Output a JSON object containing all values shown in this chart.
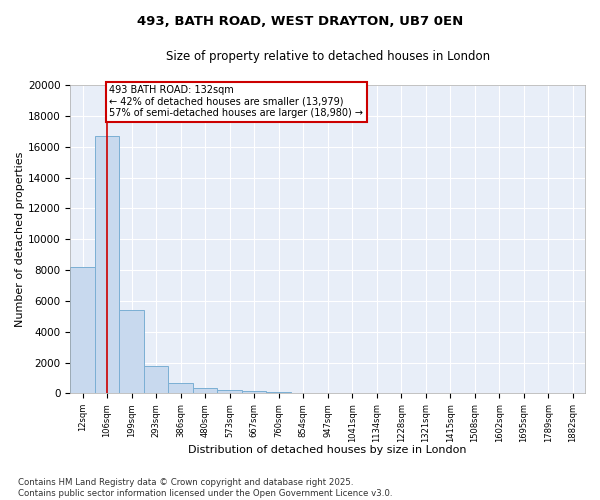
{
  "title": "493, BATH ROAD, WEST DRAYTON, UB7 0EN",
  "subtitle": "Size of property relative to detached houses in London",
  "xlabel": "Distribution of detached houses by size in London",
  "ylabel": "Number of detached properties",
  "bar_color": "#c8d9ee",
  "bar_edge_color": "#7bafd4",
  "background_color": "#e8eef8",
  "grid_color": "#ffffff",
  "categories": [
    "12sqm",
    "106sqm",
    "199sqm",
    "293sqm",
    "386sqm",
    "480sqm",
    "573sqm",
    "667sqm",
    "760sqm",
    "854sqm",
    "947sqm",
    "1041sqm",
    "1134sqm",
    "1228sqm",
    "1321sqm",
    "1415sqm",
    "1508sqm",
    "1602sqm",
    "1695sqm",
    "1789sqm",
    "1882sqm"
  ],
  "values": [
    8200,
    16700,
    5400,
    1800,
    650,
    320,
    200,
    150,
    100,
    0,
    0,
    0,
    0,
    0,
    0,
    0,
    0,
    0,
    0,
    0,
    0
  ],
  "ylim": [
    0,
    20000
  ],
  "yticks": [
    0,
    2000,
    4000,
    6000,
    8000,
    10000,
    12000,
    14000,
    16000,
    18000,
    20000
  ],
  "vline_x": 1,
  "vline_color": "#cc0000",
  "annotation_text": "493 BATH ROAD: 132sqm\n← 42% of detached houses are smaller (13,979)\n57% of semi-detached houses are larger (18,980) →",
  "footnote": "Contains HM Land Registry data © Crown copyright and database right 2025.\nContains public sector information licensed under the Open Government Licence v3.0."
}
